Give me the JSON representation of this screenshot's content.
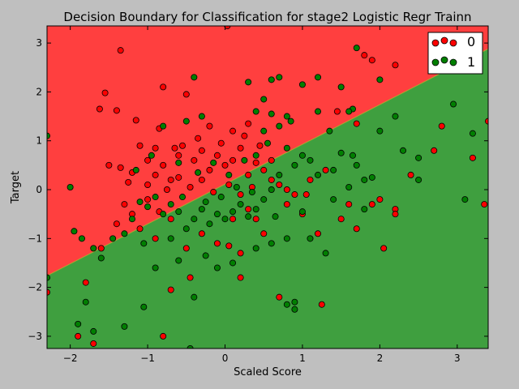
{
  "chart_data": {
    "type": "scatter",
    "title": "Decision Boundary for Classification for stage2 Logistic Regr Trainn",
    "xlabel": "Scaled Score",
    "ylabel": "Target",
    "xlim": [
      -2.3,
      3.4
    ],
    "ylim": [
      -3.25,
      3.35
    ],
    "xticks": [
      -2,
      -1,
      0,
      1,
      2,
      3
    ],
    "yticks": [
      -3,
      -2,
      -1,
      0,
      1,
      2,
      3
    ],
    "tick_labels_x": [
      "−2",
      "−1",
      "0",
      "1",
      "2",
      "3"
    ],
    "tick_labels_y": [
      "−3",
      "−2",
      "−1",
      "0",
      "1",
      "2",
      "3"
    ],
    "boundary": {
      "x": [
        -2.3,
        3.4
      ],
      "y": [
        -1.76,
        2.88
      ]
    },
    "region_colors": {
      "upper": "#ff3f3f",
      "lower": "#3f9f3f"
    },
    "grid": false,
    "legend_position": "top-right",
    "series": [
      {
        "name": "0",
        "color": "#ff0000",
        "points": [
          [
            -1.35,
            2.85
          ],
          [
            -1.55,
            1.98
          ],
          [
            -0.8,
            2.1
          ],
          [
            -0.5,
            1.95
          ],
          [
            0.03,
            3.35
          ],
          [
            -1.62,
            1.65
          ],
          [
            -1.4,
            1.62
          ],
          [
            -1.15,
            1.42
          ],
          [
            -0.85,
            1.25
          ],
          [
            -0.2,
            1.3
          ],
          [
            0.1,
            1.2
          ],
          [
            0.3,
            1.35
          ],
          [
            -1.35,
            0.45
          ],
          [
            -1.5,
            0.5
          ],
          [
            -1.2,
            0.35
          ],
          [
            -1.1,
            0.9
          ],
          [
            -1.0,
            0.6
          ],
          [
            -0.9,
            0.85
          ],
          [
            -0.8,
            0.5
          ],
          [
            -0.7,
            0.2
          ],
          [
            -0.6,
            0.7
          ],
          [
            -0.55,
            0.9
          ],
          [
            -0.4,
            0.6
          ],
          [
            -0.3,
            0.8
          ],
          [
            -0.2,
            0.4
          ],
          [
            -0.1,
            0.7
          ],
          [
            0.0,
            0.5
          ],
          [
            0.1,
            0.6
          ],
          [
            0.2,
            0.85
          ],
          [
            0.3,
            0.3
          ],
          [
            0.4,
            0.55
          ],
          [
            0.5,
            0.4
          ],
          [
            0.6,
            0.2
          ],
          [
            0.7,
            0.1
          ],
          [
            0.8,
            0.0
          ],
          [
            0.9,
            -0.1
          ],
          [
            -1.0,
            0.1
          ],
          [
            -0.9,
            0.3
          ],
          [
            -0.75,
            0.0
          ],
          [
            -0.6,
            0.25
          ],
          [
            -0.45,
            0.05
          ],
          [
            -0.3,
            0.2
          ],
          [
            -0.15,
            -0.05
          ],
          [
            0.05,
            0.1
          ],
          [
            0.2,
            -0.1
          ],
          [
            0.35,
            0.05
          ],
          [
            -1.2,
            -0.5
          ],
          [
            -1.1,
            -0.8
          ],
          [
            -0.9,
            -1.0
          ],
          [
            -0.7,
            -0.6
          ],
          [
            -0.5,
            -1.2
          ],
          [
            -0.3,
            -0.9
          ],
          [
            -0.1,
            -1.1
          ],
          [
            0.05,
            -1.15
          ],
          [
            0.2,
            -1.3
          ],
          [
            0.4,
            -0.6
          ],
          [
            0.5,
            -0.9
          ],
          [
            -1.8,
            -1.9
          ],
          [
            -2.3,
            -2.1
          ],
          [
            -1.9,
            -3.0
          ],
          [
            -1.7,
            -3.15
          ],
          [
            -0.8,
            -3.0
          ],
          [
            -0.7,
            -2.05
          ],
          [
            -0.45,
            -1.8
          ],
          [
            0.2,
            -1.8
          ],
          [
            0.7,
            -2.2
          ],
          [
            1.0,
            -0.5
          ],
          [
            1.2,
            -0.9
          ],
          [
            1.3,
            0.4
          ],
          [
            1.45,
            1.6
          ],
          [
            1.7,
            1.35
          ],
          [
            1.9,
            2.65
          ],
          [
            2.2,
            2.55
          ],
          [
            1.8,
            2.75
          ],
          [
            1.9,
            -0.3
          ],
          [
            2.0,
            -0.2
          ],
          [
            2.05,
            -1.2
          ],
          [
            2.2,
            -0.4
          ],
          [
            2.2,
            -0.5
          ],
          [
            2.4,
            0.3
          ],
          [
            1.5,
            -0.6
          ],
          [
            1.7,
            -0.8
          ],
          [
            1.6,
            -0.3
          ],
          [
            2.7,
            0.8
          ],
          [
            2.8,
            1.3
          ],
          [
            3.2,
            0.65
          ],
          [
            3.35,
            -0.3
          ],
          [
            3.4,
            1.4
          ],
          [
            1.25,
            -2.35
          ],
          [
            -1.6,
            -1.2
          ],
          [
            -1.4,
            -0.7
          ],
          [
            -1.3,
            -0.3
          ],
          [
            -1.0,
            -0.2
          ],
          [
            0.8,
            -0.3
          ],
          [
            1.1,
            0.2
          ],
          [
            0.6,
            0.6
          ],
          [
            0.45,
            0.9
          ],
          [
            0.25,
            1.1
          ],
          [
            -0.05,
            0.95
          ],
          [
            -0.35,
            1.05
          ],
          [
            -0.65,
            0.85
          ],
          [
            -1.25,
            0.15
          ],
          [
            -0.85,
            -0.45
          ],
          [
            0.1,
            -0.6
          ],
          [
            0.3,
            -0.4
          ],
          [
            1.05,
            -0.1
          ]
        ]
      },
      {
        "name": "1",
        "color": "#007f00",
        "points": [
          [
            -0.4,
            2.3
          ],
          [
            0.6,
            2.25
          ],
          [
            0.7,
            2.3
          ],
          [
            1.0,
            2.15
          ],
          [
            1.2,
            2.3
          ],
          [
            1.7,
            2.9
          ],
          [
            1.5,
            2.1
          ],
          [
            2.0,
            2.25
          ],
          [
            0.3,
            2.2
          ],
          [
            0.5,
            1.85
          ],
          [
            0.4,
            1.6
          ],
          [
            0.6,
            1.55
          ],
          [
            0.8,
            1.5
          ],
          [
            1.2,
            1.6
          ],
          [
            0.85,
            1.4
          ],
          [
            0.7,
            1.3
          ],
          [
            0.5,
            1.2
          ],
          [
            1.35,
            1.2
          ],
          [
            1.65,
            1.65
          ],
          [
            1.6,
            1.6
          ],
          [
            2.0,
            1.2
          ],
          [
            2.2,
            1.5
          ],
          [
            2.3,
            0.8
          ],
          [
            2.5,
            0.65
          ],
          [
            2.5,
            0.2
          ],
          [
            1.5,
            0.75
          ],
          [
            1.65,
            0.7
          ],
          [
            1.7,
            0.5
          ],
          [
            1.8,
            0.2
          ],
          [
            1.4,
            0.4
          ],
          [
            1.2,
            0.3
          ],
          [
            1.1,
            0.6
          ],
          [
            1.0,
            0.7
          ],
          [
            0.9,
            0.5
          ],
          [
            0.7,
            0.3
          ],
          [
            0.6,
            0.0
          ],
          [
            0.5,
            -0.2
          ],
          [
            0.4,
            -0.4
          ],
          [
            0.3,
            -0.55
          ],
          [
            0.2,
            -0.3
          ],
          [
            0.1,
            -0.45
          ],
          [
            0.0,
            -0.6
          ],
          [
            -0.1,
            -0.5
          ],
          [
            -0.2,
            -0.7
          ],
          [
            -0.3,
            -0.4
          ],
          [
            -0.4,
            -0.6
          ],
          [
            -0.5,
            -0.8
          ],
          [
            -0.6,
            -0.45
          ],
          [
            -0.7,
            -0.3
          ],
          [
            -0.8,
            -0.5
          ],
          [
            -0.9,
            -0.15
          ],
          [
            -1.0,
            -0.35
          ],
          [
            -1.1,
            -0.25
          ],
          [
            -1.2,
            -0.6
          ],
          [
            -1.3,
            -0.9
          ],
          [
            -1.45,
            -1.0
          ],
          [
            -1.6,
            -1.4
          ],
          [
            -1.7,
            -1.2
          ],
          [
            -1.85,
            -1.0
          ],
          [
            -1.95,
            -0.85
          ],
          [
            -2.0,
            0.05
          ],
          [
            -2.3,
            1.1
          ],
          [
            -2.3,
            -1.8
          ],
          [
            -1.8,
            -2.3
          ],
          [
            -1.9,
            -2.75
          ],
          [
            -1.7,
            -2.9
          ],
          [
            -1.3,
            -2.8
          ],
          [
            -1.05,
            -2.4
          ],
          [
            -0.9,
            -1.6
          ],
          [
            -0.6,
            -1.45
          ],
          [
            -0.4,
            -2.2
          ],
          [
            -0.45,
            -3.25
          ],
          [
            -0.1,
            -1.6
          ],
          [
            0.1,
            -1.5
          ],
          [
            0.4,
            -1.2
          ],
          [
            0.6,
            -1.1
          ],
          [
            0.8,
            -1.0
          ],
          [
            0.9,
            -2.3
          ],
          [
            0.9,
            -2.45
          ],
          [
            0.8,
            -2.35
          ],
          [
            1.1,
            -1.0
          ],
          [
            1.3,
            -1.3
          ],
          [
            1.4,
            -0.2
          ],
          [
            1.6,
            0.05
          ],
          [
            1.8,
            -0.4
          ],
          [
            1.9,
            0.25
          ],
          [
            3.1,
            -0.2
          ],
          [
            3.2,
            1.15
          ],
          [
            2.95,
            1.75
          ],
          [
            -0.5,
            1.4
          ],
          [
            -0.8,
            1.3
          ],
          [
            -0.3,
            1.5
          ],
          [
            -0.6,
            0.55
          ],
          [
            -0.35,
            0.35
          ],
          [
            -0.15,
            0.55
          ],
          [
            0.05,
            0.3
          ],
          [
            0.25,
            0.6
          ],
          [
            0.4,
            0.7
          ],
          [
            0.55,
            0.95
          ],
          [
            0.8,
            0.85
          ],
          [
            -0.95,
            0.7
          ],
          [
            -1.15,
            0.4
          ],
          [
            -0.55,
            -0.15
          ],
          [
            -0.25,
            -0.25
          ],
          [
            -0.05,
            -0.15
          ],
          [
            0.15,
            0.05
          ],
          [
            0.35,
            -0.05
          ],
          [
            0.65,
            -0.55
          ],
          [
            1.0,
            -0.45
          ],
          [
            -1.05,
            -1.1
          ],
          [
            -0.25,
            -1.35
          ],
          [
            -0.7,
            -1.0
          ]
        ]
      }
    ]
  }
}
